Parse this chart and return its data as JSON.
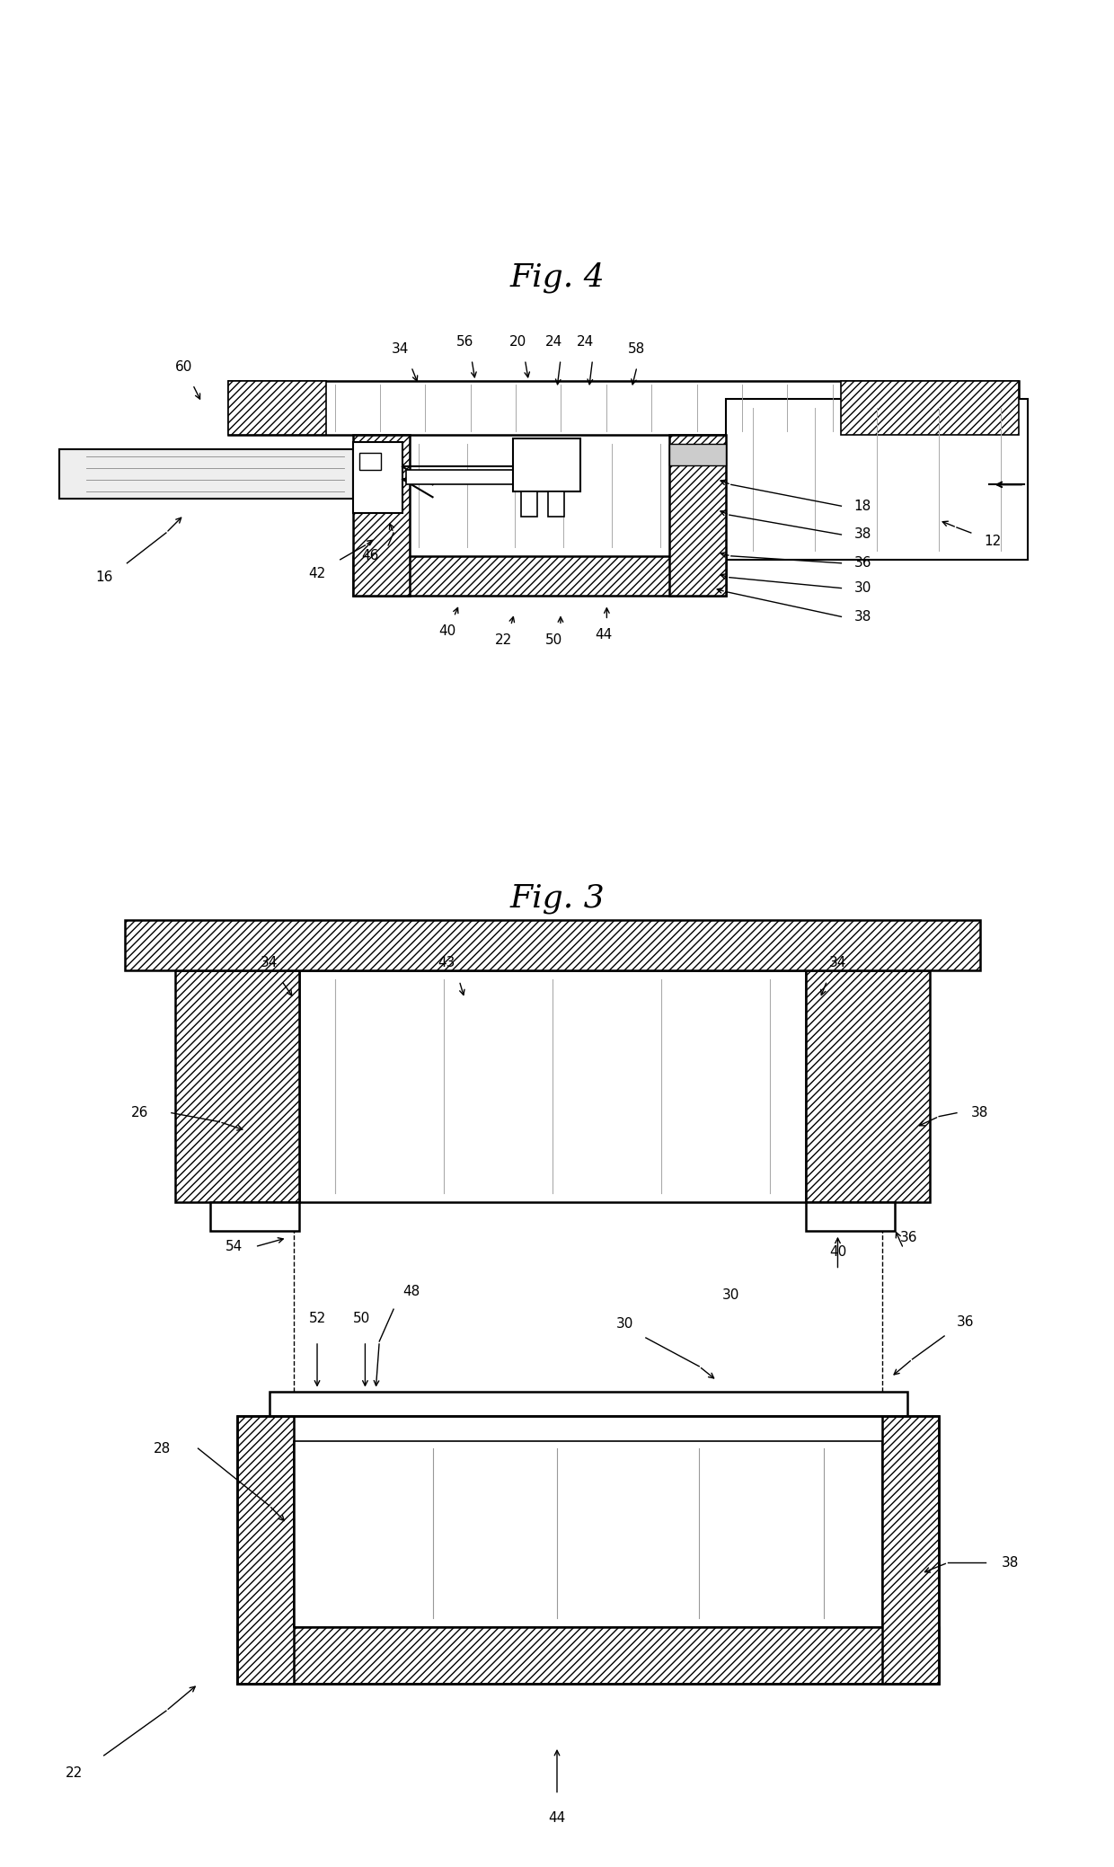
{
  "fig_width": 12.4,
  "fig_height": 20.78,
  "bg_color": "#ffffff",
  "line_color": "#000000",
  "fig3_title": "Fig. 3",
  "fig4_title": "Fig. 4"
}
